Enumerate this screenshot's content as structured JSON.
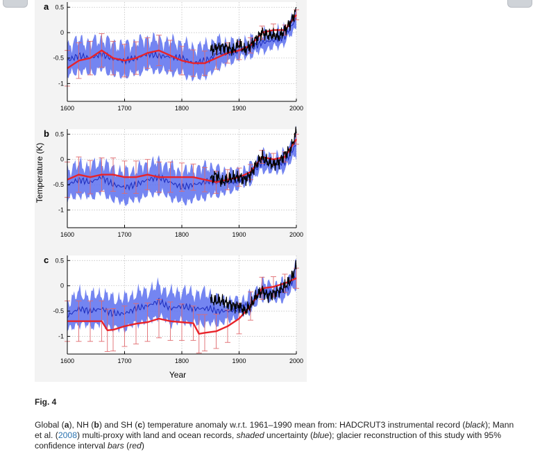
{
  "toolbar": {
    "left_button": "back-button",
    "right_button": "forward-button"
  },
  "chart_data": [
    {
      "type": "line",
      "panel_label": "a",
      "title": "",
      "xlabel": "",
      "ylabel": "",
      "xlim": [
        1600,
        2000
      ],
      "ylim": [
        -1.35,
        0.6
      ],
      "xticks": [
        1600,
        1700,
        1800,
        1900,
        2000
      ],
      "yticks": [
        0.5,
        0,
        -0.5,
        -1
      ],
      "grid": true,
      "colors": {
        "instrumental": "#000000",
        "mann": "#1f2fbf",
        "mann_band": "#5c70ee",
        "glacier": "#e8232a",
        "glacier_bars": "#e06a6e"
      },
      "series": [
        {
          "role": "mann",
          "x": [
            1600,
            1620,
            1640,
            1660,
            1680,
            1700,
            1720,
            1740,
            1760,
            1780,
            1800,
            1820,
            1840,
            1850,
            1860,
            1880,
            1900,
            1920,
            1940,
            1960,
            1980,
            2000
          ],
          "values": [
            -0.55,
            -0.45,
            -0.5,
            -0.42,
            -0.52,
            -0.55,
            -0.5,
            -0.42,
            -0.45,
            -0.48,
            -0.5,
            -0.6,
            -0.55,
            -0.52,
            -0.42,
            -0.4,
            -0.35,
            -0.3,
            -0.2,
            -0.15,
            -0.08,
            0.28
          ],
          "lower": [
            -0.85,
            -0.75,
            -0.8,
            -0.72,
            -0.82,
            -0.85,
            -0.8,
            -0.72,
            -0.75,
            -0.78,
            -0.8,
            -0.9,
            -0.85,
            -0.82,
            -0.7,
            -0.6,
            -0.5,
            -0.45,
            -0.35,
            -0.3,
            -0.2,
            0.1
          ],
          "upper": [
            -0.25,
            -0.15,
            -0.2,
            -0.12,
            -0.22,
            -0.25,
            -0.2,
            -0.12,
            -0.15,
            -0.18,
            -0.2,
            -0.3,
            -0.25,
            -0.22,
            -0.15,
            -0.2,
            -0.2,
            -0.15,
            -0.05,
            0.0,
            0.05,
            0.45
          ]
        },
        {
          "role": "glacier",
          "x": [
            1600,
            1620,
            1640,
            1660,
            1680,
            1700,
            1720,
            1740,
            1760,
            1780,
            1800,
            1820,
            1840,
            1860,
            1880,
            1900,
            1920,
            1940,
            1960,
            1980,
            2000
          ],
          "values": [
            -0.7,
            -0.55,
            -0.5,
            -0.35,
            -0.5,
            -0.55,
            -0.5,
            -0.4,
            -0.35,
            -0.45,
            -0.55,
            -0.6,
            -0.6,
            -0.5,
            -0.4,
            -0.35,
            -0.25,
            0.0,
            0.05,
            0.05,
            0.35
          ],
          "err": [
            0.35,
            0.35,
            0.33,
            0.33,
            0.33,
            0.32,
            0.32,
            0.3,
            0.3,
            0.3,
            0.28,
            0.26,
            0.24,
            0.22,
            0.2,
            0.18,
            0.15,
            0.13,
            0.12,
            0.1,
            0.1
          ]
        },
        {
          "role": "instrumental",
          "x": [
            1850,
            1860,
            1870,
            1880,
            1890,
            1900,
            1910,
            1920,
            1930,
            1940,
            1950,
            1960,
            1970,
            1980,
            1990,
            2000
          ],
          "values": [
            -0.35,
            -0.3,
            -0.28,
            -0.3,
            -0.35,
            -0.22,
            -0.35,
            -0.25,
            -0.12,
            0.0,
            -0.05,
            -0.05,
            -0.08,
            0.05,
            0.2,
            0.45
          ]
        }
      ]
    },
    {
      "type": "line",
      "panel_label": "b",
      "title": "",
      "xlabel": "",
      "ylabel": "Temperature (K)",
      "xlim": [
        1600,
        2000
      ],
      "ylim": [
        -1.35,
        0.6
      ],
      "xticks": [
        1600,
        1700,
        1800,
        1900,
        2000
      ],
      "yticks": [
        0.5,
        0,
        -0.5,
        -1
      ],
      "grid": true,
      "colors": {
        "instrumental": "#000000",
        "mann": "#1f2fbf",
        "mann_band": "#5c70ee",
        "glacier": "#e8232a",
        "glacier_bars": "#e06a6e"
      },
      "series": [
        {
          "role": "mann",
          "x": [
            1600,
            1620,
            1640,
            1660,
            1680,
            1700,
            1720,
            1740,
            1760,
            1780,
            1800,
            1820,
            1840,
            1850,
            1860,
            1880,
            1900,
            1920,
            1940,
            1960,
            1980,
            2000
          ],
          "values": [
            -0.5,
            -0.4,
            -0.45,
            -0.35,
            -0.5,
            -0.55,
            -0.5,
            -0.4,
            -0.35,
            -0.45,
            -0.55,
            -0.5,
            -0.45,
            -0.42,
            -0.45,
            -0.45,
            -0.4,
            -0.3,
            -0.05,
            -0.1,
            -0.05,
            0.3
          ],
          "lower": [
            -0.8,
            -0.7,
            -0.75,
            -0.65,
            -0.8,
            -0.85,
            -0.8,
            -0.7,
            -0.65,
            -0.75,
            -0.85,
            -0.8,
            -0.75,
            -0.72,
            -0.7,
            -0.65,
            -0.55,
            -0.45,
            -0.2,
            -0.25,
            -0.2,
            0.1
          ],
          "upper": [
            -0.2,
            -0.1,
            -0.15,
            -0.05,
            -0.2,
            -0.25,
            -0.2,
            -0.1,
            -0.05,
            -0.15,
            -0.25,
            -0.2,
            -0.15,
            -0.12,
            -0.2,
            -0.25,
            -0.25,
            -0.15,
            0.1,
            0.05,
            0.1,
            0.5
          ]
        },
        {
          "role": "glacier",
          "x": [
            1600,
            1620,
            1640,
            1660,
            1680,
            1700,
            1720,
            1740,
            1760,
            1780,
            1800,
            1820,
            1840,
            1860,
            1880,
            1900,
            1920,
            1940,
            1960,
            1980,
            2000
          ],
          "values": [
            -0.4,
            -0.3,
            -0.35,
            -0.3,
            -0.3,
            -0.35,
            -0.35,
            -0.3,
            -0.35,
            -0.35,
            -0.35,
            -0.35,
            -0.4,
            -0.45,
            -0.4,
            -0.35,
            -0.25,
            0.05,
            0.0,
            0.05,
            0.4
          ],
          "err": [
            0.35,
            0.35,
            0.33,
            0.33,
            0.33,
            0.32,
            0.32,
            0.3,
            0.3,
            0.3,
            0.28,
            0.26,
            0.24,
            0.22,
            0.2,
            0.18,
            0.15,
            0.13,
            0.12,
            0.1,
            0.1
          ]
        },
        {
          "role": "instrumental",
          "x": [
            1850,
            1860,
            1870,
            1880,
            1890,
            1900,
            1910,
            1920,
            1930,
            1940,
            1950,
            1960,
            1970,
            1980,
            1990,
            2000
          ],
          "values": [
            -0.4,
            -0.3,
            -0.45,
            -0.4,
            -0.35,
            -0.35,
            -0.4,
            -0.3,
            -0.1,
            0.05,
            -0.05,
            -0.1,
            -0.05,
            0.1,
            0.2,
            0.55
          ]
        }
      ]
    },
    {
      "type": "line",
      "panel_label": "c",
      "title": "",
      "xlabel": "Year",
      "ylabel": "",
      "xlim": [
        1600,
        2000
      ],
      "ylim": [
        -1.35,
        0.6
      ],
      "xticks": [
        1600,
        1700,
        1800,
        1900,
        2000
      ],
      "yticks": [
        0.5,
        0,
        -0.5,
        -1
      ],
      "grid": true,
      "colors": {
        "instrumental": "#000000",
        "mann": "#1f2fbf",
        "mann_band": "#5c70ee",
        "glacier": "#e8232a",
        "glacier_bars": "#e06a6e"
      },
      "series": [
        {
          "role": "mann",
          "x": [
            1600,
            1620,
            1640,
            1660,
            1680,
            1700,
            1720,
            1740,
            1760,
            1780,
            1800,
            1820,
            1840,
            1850,
            1860,
            1880,
            1900,
            1920,
            1940,
            1960,
            1980,
            2000
          ],
          "values": [
            -0.6,
            -0.45,
            -0.5,
            -0.45,
            -0.55,
            -0.55,
            -0.45,
            -0.4,
            -0.3,
            -0.45,
            -0.4,
            -0.45,
            -0.45,
            -0.45,
            -0.5,
            -0.5,
            -0.45,
            -0.35,
            -0.1,
            -0.15,
            -0.1,
            0.2
          ],
          "lower": [
            -0.9,
            -0.75,
            -0.8,
            -0.75,
            -0.85,
            -0.85,
            -0.75,
            -0.7,
            -0.6,
            -0.75,
            -0.7,
            -0.75,
            -0.75,
            -0.75,
            -0.75,
            -0.7,
            -0.6,
            -0.5,
            -0.25,
            -0.3,
            -0.25,
            0.0
          ],
          "upper": [
            -0.3,
            -0.15,
            -0.2,
            -0.15,
            -0.25,
            -0.25,
            -0.15,
            -0.1,
            0.0,
            -0.15,
            -0.1,
            -0.15,
            -0.15,
            -0.15,
            -0.25,
            -0.3,
            -0.3,
            -0.2,
            0.05,
            0.0,
            0.05,
            0.4
          ]
        },
        {
          "role": "glacier",
          "x": [
            1600,
            1620,
            1640,
            1660,
            1670,
            1680,
            1700,
            1720,
            1740,
            1760,
            1780,
            1800,
            1820,
            1830,
            1840,
            1860,
            1880,
            1900,
            1920,
            1940,
            1960,
            1980,
            2000
          ],
          "values": [
            -0.7,
            -0.7,
            -0.7,
            -0.7,
            -0.88,
            -0.87,
            -0.8,
            -0.75,
            -0.72,
            -0.65,
            -0.7,
            -0.72,
            -0.74,
            -0.95,
            -0.93,
            -0.9,
            -0.8,
            -0.65,
            -0.4,
            -0.05,
            -0.02,
            0.05,
            0.15
          ],
          "err": [
            0.4,
            0.4,
            0.4,
            0.4,
            0.42,
            0.42,
            0.4,
            0.4,
            0.38,
            0.38,
            0.38,
            0.36,
            0.34,
            0.38,
            0.36,
            0.34,
            0.32,
            0.3,
            0.28,
            0.22,
            0.2,
            0.18,
            0.2
          ]
        },
        {
          "role": "instrumental",
          "x": [
            1850,
            1860,
            1870,
            1880,
            1890,
            1900,
            1910,
            1920,
            1930,
            1940,
            1950,
            1960,
            1970,
            1980,
            1990,
            2000
          ],
          "values": [
            -0.3,
            -0.3,
            -0.3,
            -0.35,
            -0.4,
            -0.4,
            -0.5,
            -0.4,
            -0.2,
            -0.1,
            -0.2,
            -0.15,
            -0.1,
            0.0,
            0.1,
            0.4
          ]
        }
      ]
    }
  ],
  "caption": {
    "fig_label": "Fig. 4",
    "parts": [
      {
        "text": "Global ("
      },
      {
        "text": "a",
        "b": true
      },
      {
        "text": "), NH ("
      },
      {
        "text": "b",
        "b": true
      },
      {
        "text": ") and SH ("
      },
      {
        "text": "c",
        "b": true
      },
      {
        "text": ") temperature anomaly w.r.t. 1961–1990 mean from: HADCRUT3 instrumental record ("
      },
      {
        "text": "black",
        "i": true
      },
      {
        "text": "); Mann et al. ("
      },
      {
        "text": "2008",
        "link": true
      },
      {
        "text": ") multi-proxy with land and ocean records, "
      },
      {
        "text": "shaded",
        "i": true
      },
      {
        "text": " uncertainty ("
      },
      {
        "text": "blue",
        "i": true
      },
      {
        "text": "); glacier reconstruction of this study with 95% confidence interval "
      },
      {
        "text": "bars",
        "i": true
      },
      {
        "text": " ("
      },
      {
        "text": "red",
        "i": true
      },
      {
        "text": ")"
      }
    ]
  }
}
